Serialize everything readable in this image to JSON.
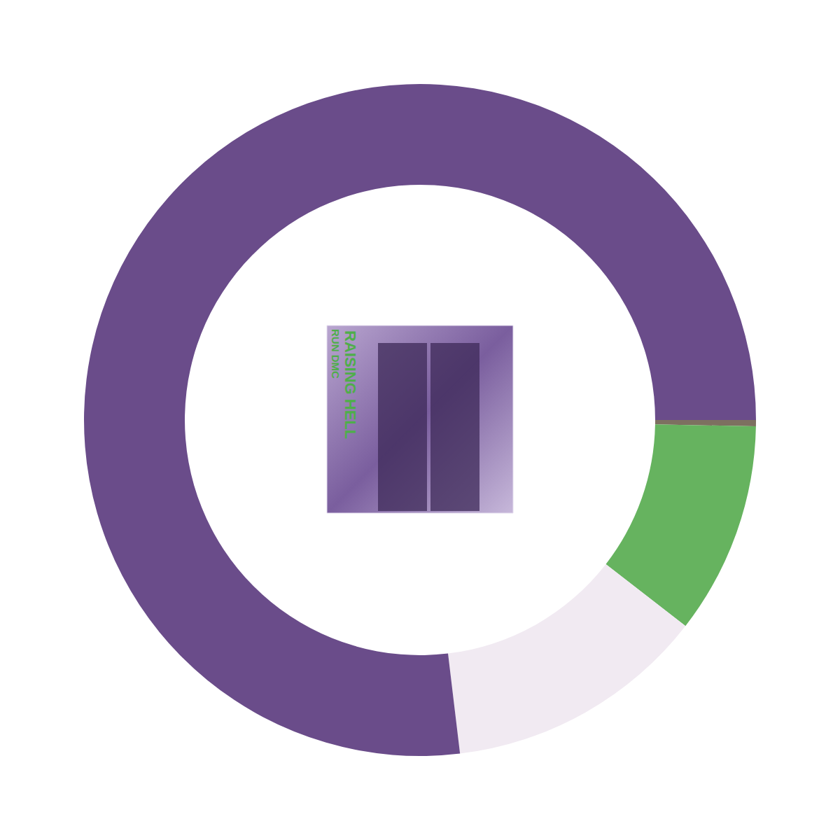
{
  "chart_data": {
    "type": "pie",
    "values": [
      0.3,
      10.2,
      12.6,
      76.9
    ],
    "colors": [
      "#7d7060",
      "#66b35f",
      "#f1eaf2",
      "#6a4c8a"
    ],
    "data_labels": false,
    "annotations": [
      "RUN DMC",
      "RAISING HELL"
    ]
  }
}
